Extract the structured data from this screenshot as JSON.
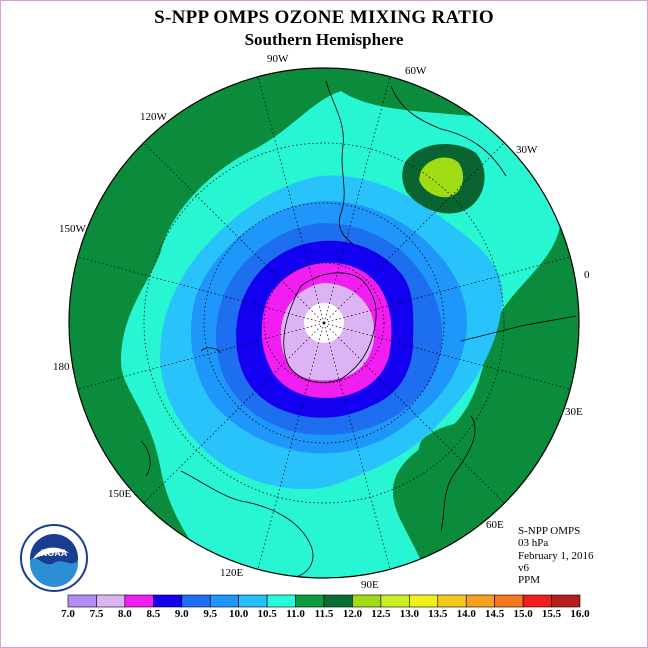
{
  "header": {
    "title": "S-NPP OMPS OZONE MIXING RATIO",
    "subtitle": "Southern Hemisphere"
  },
  "longitude_labels": [
    "90W",
    "60W",
    "30W",
    "0",
    "30E",
    "60E",
    "90E",
    "120E",
    "150E",
    "180",
    "150W",
    "120W"
  ],
  "info": {
    "satellite": "S-NPP OMPS",
    "level": "03 hPa",
    "date": "February 1, 2016",
    "version": "v6",
    "units": "PPM"
  },
  "logo": {
    "text": "NOAA",
    "icon": "noaa-logo"
  },
  "color_scale": {
    "labels": [
      "7.0",
      "7.5",
      "8.0",
      "8.5",
      "9.0",
      "9.5",
      "10.0",
      "10.5",
      "11.0",
      "11.5",
      "12.0",
      "12.5",
      "13.0",
      "13.5",
      "14.0",
      "14.5",
      "15.0",
      "15.5",
      "16.0"
    ],
    "colors": [
      "#b38cf5",
      "#dcb4f5",
      "#f01ef0",
      "#1400f0",
      "#1e6ef5",
      "#1e96fa",
      "#28c0fa",
      "#28fadc",
      "#0a9b3c",
      "#0a6e32",
      "#a0dc14",
      "#c8f01e",
      "#f0f01e",
      "#f5c81e",
      "#f5a01e",
      "#f5781e",
      "#f01e1e",
      "#b41e1e",
      "#8c5a3c"
    ]
  },
  "map_colors": {
    "ring_11_0": "#0a8c3c",
    "ring_10_5": "#28f5d2",
    "ring_10_0": "#28c3fa",
    "ring_9_5": "#1e96fa",
    "ring_9_0": "#1e6ef0",
    "ring_8_5": "#1400f0",
    "ring_8_0": "#f01ef0",
    "ring_7_5": "#dcb4f5",
    "high_12_0": "#0a6432",
    "high_12_5": "#a0dc14"
  }
}
